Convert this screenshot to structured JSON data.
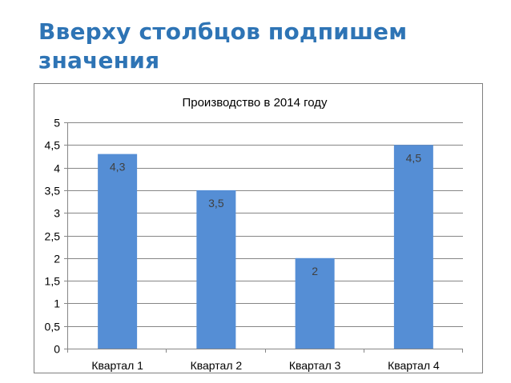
{
  "slide": {
    "title": "Вверху столбцов подпишем значения"
  },
  "colors": {
    "title": "#2e74b5",
    "bar": "#558ed5",
    "gridline": "#868686",
    "text": "#000000",
    "data_label": "#404040"
  },
  "chart_data": {
    "type": "bar",
    "title": "Производство в 2014 году",
    "xlabel": "",
    "ylabel": "",
    "categories": [
      "Квартал 1",
      "Квартал 2",
      "Квартал 3",
      "Квартал 4"
    ],
    "values": [
      4.3,
      3.5,
      2,
      4.5
    ],
    "data_labels": [
      "4,3",
      "3,5",
      "2",
      "4,5"
    ],
    "ylim": [
      0,
      5
    ],
    "yticks": [
      0,
      0.5,
      1,
      1.5,
      2,
      2.5,
      3,
      3.5,
      4,
      4.5,
      5
    ],
    "ytick_labels": [
      "0",
      "0,5",
      "1",
      "1,5",
      "2",
      "2,5",
      "3",
      "3,5",
      "4",
      "4,5",
      "5"
    ],
    "grid": true,
    "legend": "none"
  }
}
